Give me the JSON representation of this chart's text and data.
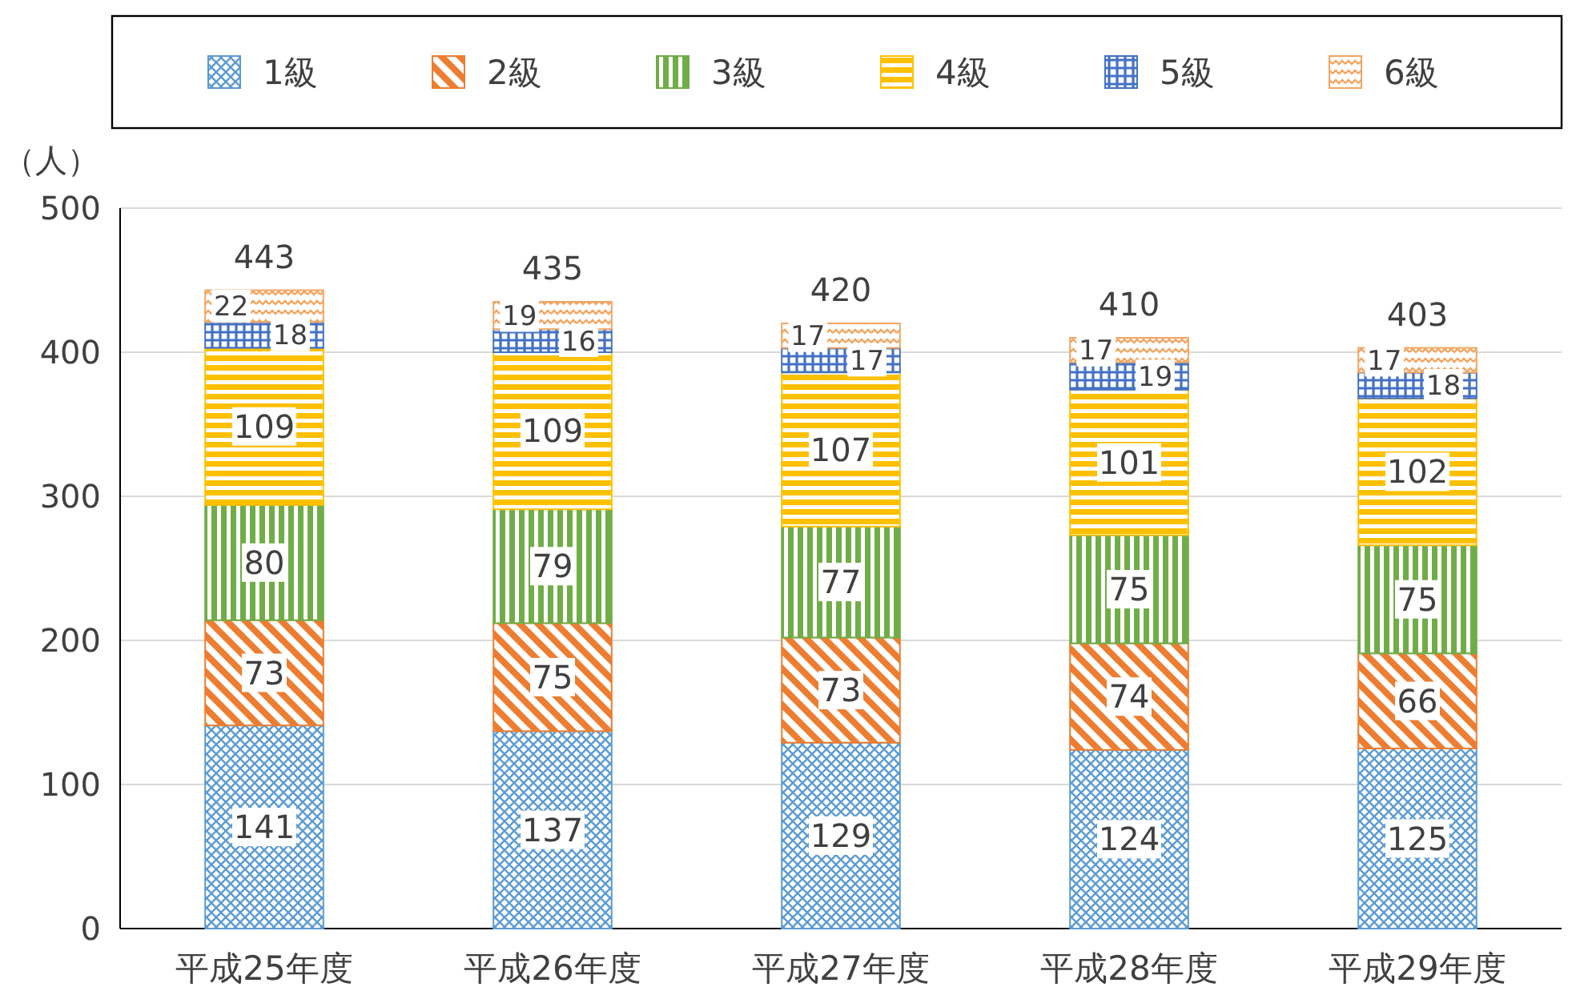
{
  "chart_data": {
    "type": "bar",
    "stacked": true,
    "ylabel": "（人）",
    "categories": [
      "平成25年度",
      "平成26年度",
      "平成27年度",
      "平成28年度",
      "平成29年度"
    ],
    "series": [
      {
        "name": "1級",
        "color": "#5b9bd5",
        "values": [
          141,
          137,
          129,
          124,
          125
        ]
      },
      {
        "name": "2級",
        "color": "#ed7d31",
        "values": [
          73,
          75,
          73,
          74,
          66
        ]
      },
      {
        "name": "3級",
        "color": "#70ad47",
        "values": [
          80,
          79,
          77,
          75,
          75
        ]
      },
      {
        "name": "4級",
        "color": "#ffc000",
        "values": [
          109,
          109,
          107,
          101,
          102
        ]
      },
      {
        "name": "5級",
        "color": "#4472c4",
        "values": [
          18,
          16,
          17,
          19,
          18
        ]
      },
      {
        "name": "6級",
        "color": "#f4a460",
        "values": [
          22,
          19,
          17,
          17,
          17
        ]
      }
    ],
    "totals": [
      "443",
      "435",
      "420",
      "410",
      "403"
    ],
    "ylim": [
      0,
      500
    ],
    "yticks": [
      0,
      100,
      200,
      300,
      400,
      500
    ],
    "grid": "y",
    "legend": "top",
    "data_labels": true
  }
}
